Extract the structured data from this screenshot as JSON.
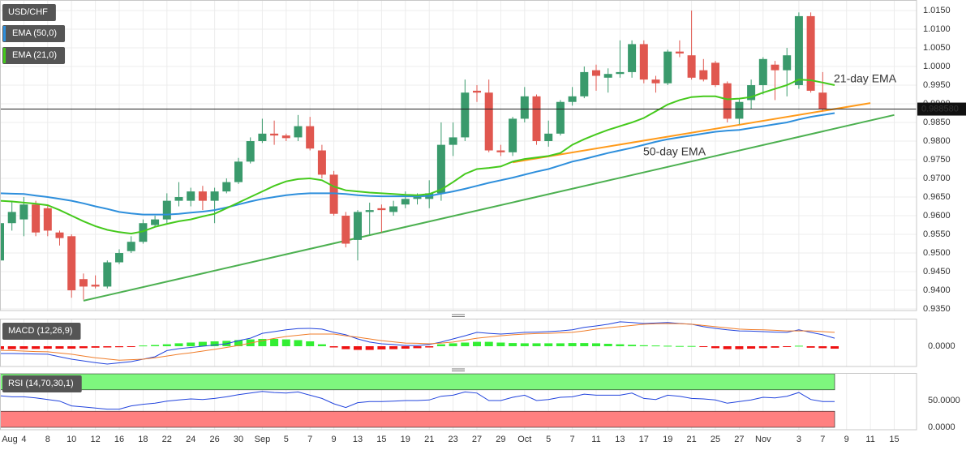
{
  "chart_data": [
    {
      "type": "candlestick",
      "title": "USD/CHF",
      "up_color": "#3a9a6c",
      "down_color": "#e0574f",
      "open": [
        0.948,
        0.958,
        0.959,
        0.963,
        0.962,
        0.9555,
        0.9545,
        0.943,
        0.9415,
        0.941,
        0.9475,
        0.9505,
        0.953,
        0.9575,
        0.959,
        0.964,
        0.964,
        0.9665,
        0.964,
        0.9665,
        0.969,
        0.9745,
        0.98,
        0.982,
        0.9815,
        0.981,
        0.984,
        0.9775,
        0.971,
        0.96,
        0.9535,
        0.961,
        0.962,
        0.961,
        0.963,
        0.9645,
        0.9645,
        0.966,
        0.979,
        0.981,
        0.9935,
        0.993,
        0.9775,
        0.977,
        0.986,
        0.992,
        0.98,
        0.982,
        0.9905,
        0.992,
        0.999,
        0.997,
        0.998,
        0.9985,
        1.006,
        0.9965,
        0.9955,
        1.004,
        1.003,
        0.999,
        1.001,
        0.9955,
        0.986,
        0.991,
        0.995,
        1.0005,
        0.999,
        0.995,
        1.0135,
        0.993
      ],
      "high": [
        0.959,
        0.964,
        0.965,
        0.964,
        0.963,
        0.956,
        0.955,
        0.9445,
        0.944,
        0.948,
        0.951,
        0.9545,
        0.959,
        0.96,
        0.966,
        0.969,
        0.9675,
        0.968,
        0.9675,
        0.97,
        0.9755,
        0.981,
        0.986,
        0.9855,
        0.982,
        0.987,
        0.9865,
        0.979,
        0.972,
        0.961,
        0.9615,
        0.9635,
        0.963,
        0.964,
        0.9665,
        0.966,
        0.9695,
        0.985,
        0.985,
        0.9965,
        0.995,
        0.9965,
        0.979,
        0.9865,
        0.9945,
        0.9925,
        0.9855,
        0.991,
        0.9945,
        1.0,
        1.0005,
        0.9995,
        1.007,
        1.007,
        1.007,
        0.9975,
        1.0045,
        1.007,
        1.015,
        1.002,
        1.0015,
        0.996,
        0.9915,
        0.9965,
        1.0025,
        1.0015,
        1.005,
        1.0145,
        1.0145,
        0.9985
      ],
      "low": [
        0.947,
        0.956,
        0.9545,
        0.9545,
        0.9545,
        0.952,
        0.938,
        0.9375,
        0.9405,
        0.9405,
        0.947,
        0.95,
        0.9525,
        0.957,
        0.958,
        0.9625,
        0.9625,
        0.9615,
        0.958,
        0.966,
        0.9685,
        0.974,
        0.9795,
        0.979,
        0.98,
        0.98,
        0.9775,
        0.97,
        0.96,
        0.9515,
        0.948,
        0.955,
        0.9555,
        0.96,
        0.962,
        0.963,
        0.962,
        0.964,
        0.976,
        0.98,
        0.9905,
        0.977,
        0.976,
        0.976,
        0.985,
        0.979,
        0.9785,
        0.9815,
        0.9895,
        0.9915,
        0.9935,
        0.993,
        0.997,
        0.997,
        0.9955,
        0.993,
        0.995,
        1.0025,
        0.9965,
        0.996,
        0.9945,
        0.985,
        0.9845,
        0.9885,
        0.9925,
        0.991,
        0.992,
        0.994,
        0.993,
        0.988
      ],
      "close": [
        0.958,
        0.961,
        0.963,
        0.9555,
        0.956,
        0.954,
        0.94,
        0.941,
        0.941,
        0.9475,
        0.95,
        0.953,
        0.958,
        0.959,
        0.964,
        0.965,
        0.9665,
        0.964,
        0.9665,
        0.969,
        0.9745,
        0.98,
        0.982,
        0.9815,
        0.9808,
        0.984,
        0.978,
        0.971,
        0.9605,
        0.9525,
        0.961,
        0.9615,
        0.9615,
        0.9625,
        0.9645,
        0.965,
        0.966,
        0.979,
        0.981,
        0.993,
        0.993,
        0.9775,
        0.977,
        0.986,
        0.992,
        0.98,
        0.982,
        0.9905,
        0.992,
        0.9985,
        0.9975,
        0.998,
        0.9985,
        1.006,
        0.9965,
        0.9955,
        1.004,
        1.0035,
        0.997,
        0.9965,
        0.995,
        0.986,
        0.9905,
        0.995,
        1.002,
        0.999,
        1.003,
        1.0135,
        0.9935,
        0.9885
      ],
      "series": [
        {
          "name": "EMA (50,0)",
          "color": "#2e8fdc",
          "values": [
            0.966,
            0.9659,
            0.9658,
            0.9654,
            0.965,
            0.9645,
            0.964,
            0.9633,
            0.9625,
            0.9618,
            0.961,
            0.9606,
            0.9603,
            0.9603,
            0.9603,
            0.9605,
            0.9608,
            0.9611,
            0.9615,
            0.9622,
            0.963,
            0.9638,
            0.9645,
            0.965,
            0.9655,
            0.9658,
            0.966,
            0.966,
            0.966,
            0.9658,
            0.9655,
            0.9653,
            0.9652,
            0.9652,
            0.9652,
            0.9652,
            0.9653,
            0.9659,
            0.9665,
            0.9672,
            0.968,
            0.9688,
            0.9695,
            0.9702,
            0.971,
            0.9718,
            0.9725,
            0.9735,
            0.9745,
            0.9752,
            0.976,
            0.9768,
            0.9775,
            0.9782,
            0.979,
            0.9798,
            0.9805,
            0.981,
            0.9815,
            0.982,
            0.9825,
            0.9828,
            0.983,
            0.9835,
            0.984,
            0.9845,
            0.985,
            0.9858,
            0.9865,
            0.987,
            0.9875
          ]
        },
        {
          "name": "EMA (21,0)",
          "color": "#45c91c",
          "values": [
            0.964,
            0.9638,
            0.9635,
            0.9632,
            0.9628,
            0.9615,
            0.96,
            0.9585,
            0.9572,
            0.9562,
            0.9556,
            0.9552,
            0.9558,
            0.957,
            0.9578,
            0.9585,
            0.959,
            0.9598,
            0.9605,
            0.962,
            0.9635,
            0.965,
            0.9665,
            0.968,
            0.9692,
            0.9698,
            0.97,
            0.9695,
            0.9678,
            0.9668,
            0.9665,
            0.9662,
            0.966,
            0.9658,
            0.9656,
            0.9655,
            0.9658,
            0.967,
            0.969,
            0.9712,
            0.9725,
            0.9728,
            0.9732,
            0.9745,
            0.9752,
            0.9756,
            0.976,
            0.9768,
            0.979,
            0.9805,
            0.9818,
            0.983,
            0.984,
            0.985,
            0.9862,
            0.988,
            0.9898,
            0.991,
            0.9918,
            0.992,
            0.992,
            0.9912,
            0.9914,
            0.9918,
            0.993,
            0.994,
            0.995,
            0.9965,
            0.9963,
            0.9957,
            0.995
          ]
        }
      ],
      "trendlines": [
        {
          "color": "#4cb050",
          "x": [
            7,
            75
          ],
          "y": [
            0.9372,
            0.987
          ]
        },
        {
          "color": "#ff9a1a",
          "x": [
            43,
            73
          ],
          "y": [
            0.9743,
            0.9902
          ]
        }
      ],
      "annotations": [
        {
          "text": "21-day EMA",
          "color": "#45c91c"
        },
        {
          "text": "50-day EMA",
          "color": "#2e8fdc"
        }
      ],
      "last_price": {
        "value": 0.98858,
        "label": "0.988580"
      },
      "xlim": [
        0,
        76.87
      ],
      "xticks": [
        {
          "value": 0,
          "label": "Aug"
        },
        {
          "value": 2,
          "label": "4"
        },
        {
          "value": 4,
          "label": "8"
        },
        {
          "value": 6,
          "label": "10"
        },
        {
          "value": 8,
          "label": "12"
        },
        {
          "value": 10,
          "label": "16"
        },
        {
          "value": 12,
          "label": "18"
        },
        {
          "value": 14,
          "label": "22"
        },
        {
          "value": 16,
          "label": "24"
        },
        {
          "value": 18,
          "label": "26"
        },
        {
          "value": 20,
          "label": "30"
        },
        {
          "value": 22,
          "label": "Sep"
        },
        {
          "value": 24,
          "label": "5"
        },
        {
          "value": 26,
          "label": "7"
        },
        {
          "value": 28,
          "label": "9"
        },
        {
          "value": 30,
          "label": "13"
        },
        {
          "value": 32,
          "label": "15"
        },
        {
          "value": 34,
          "label": "19"
        },
        {
          "value": 36,
          "label": "21"
        },
        {
          "value": 38,
          "label": "23"
        },
        {
          "value": 40,
          "label": "27"
        },
        {
          "value": 42,
          "label": "29"
        },
        {
          "value": 44,
          "label": "Oct"
        },
        {
          "value": 46,
          "label": "5"
        },
        {
          "value": 48,
          "label": "7"
        },
        {
          "value": 50,
          "label": "11"
        },
        {
          "value": 52,
          "label": "13"
        },
        {
          "value": 54,
          "label": "17"
        },
        {
          "value": 56,
          "label": "19"
        },
        {
          "value": 58,
          "label": "21"
        },
        {
          "value": 60,
          "label": "25"
        },
        {
          "value": 62,
          "label": "27"
        },
        {
          "value": 64,
          "label": "Nov"
        },
        {
          "value": 67,
          "label": "3"
        },
        {
          "value": 69,
          "label": "7"
        },
        {
          "value": 71,
          "label": "9"
        },
        {
          "value": 73,
          "label": "11"
        },
        {
          "value": 75,
          "label": "15"
        }
      ],
      "ylim": [
        0.93457,
        1.01783
      ],
      "yticks": [
        {
          "value": 0.935,
          "label": "0.9350"
        },
        {
          "value": 0.94,
          "label": "0.9400"
        },
        {
          "value": 0.945,
          "label": "0.9450"
        },
        {
          "value": 0.95,
          "label": "0.9500"
        },
        {
          "value": 0.955,
          "label": "0.9550"
        },
        {
          "value": 0.96,
          "label": "0.9600"
        },
        {
          "value": 0.965,
          "label": "0.9650"
        },
        {
          "value": 0.97,
          "label": "0.9700"
        },
        {
          "value": 0.975,
          "label": "0.9750"
        },
        {
          "value": 0.98,
          "label": "0.9800"
        },
        {
          "value": 0.985,
          "label": "0.9850"
        },
        {
          "value": 0.99,
          "label": "0.9900"
        },
        {
          "value": 0.995,
          "label": "0.9950"
        },
        {
          "value": 1.0,
          "label": "1.0000"
        },
        {
          "value": 1.005,
          "label": "1.0050"
        },
        {
          "value": 1.01,
          "label": "1.0100"
        },
        {
          "value": 1.015,
          "label": "1.0150"
        }
      ],
      "grid": true
    },
    {
      "type": "macd",
      "title": "MACD (12,26,9)",
      "histogram": [
        -0.0012,
        -0.0012,
        -0.0011,
        -0.0011,
        -0.001,
        -0.001,
        -0.001,
        -0.0008,
        -0.0006,
        -0.0005,
        -0.0004,
        -0.0002,
        0.0003,
        0.0005,
        0.0008,
        0.0012,
        0.0015,
        0.0018,
        0.002,
        0.0022,
        0.0025,
        0.0028,
        0.003,
        0.003,
        0.0028,
        0.0025,
        0.002,
        0.0008,
        -0.0005,
        -0.0012,
        -0.0015,
        -0.0015,
        -0.0013,
        -0.0012,
        -0.001,
        -0.0008,
        -0.0005,
        0.0008,
        0.0012,
        0.0015,
        0.0018,
        0.0018,
        0.0015,
        0.0013,
        0.0012,
        0.0012,
        0.0012,
        0.0012,
        0.0013,
        0.0013,
        0.0012,
        0.001,
        0.0008,
        0.0006,
        0.0004,
        0.0003,
        0.0002,
        0.0001,
        0.0001,
        -0.0002,
        -0.0008,
        -0.0012,
        -0.0012,
        -0.001,
        -0.0008,
        -0.0006,
        -0.0003,
        0.0002,
        -0.0006,
        -0.0008,
        -0.001
      ],
      "up_color": "#33ee33",
      "down_color": "#ee1111",
      "series": [
        {
          "color": "#2244dd",
          "values": [
            -0.003,
            -0.003,
            -0.0031,
            -0.0032,
            -0.0033,
            -0.0043,
            -0.0053,
            -0.006,
            -0.0067,
            -0.0073,
            -0.0068,
            -0.0063,
            -0.0053,
            -0.0043,
            -0.0018,
            -0.001,
            -0.0005,
            0,
            0.0005,
            0.001,
            0.0023,
            0.0033,
            0.0053,
            0.006,
            0.0067,
            0.0072,
            0.0073,
            0.007,
            0.0057,
            0.0047,
            0.003,
            0.0017,
            0.001,
            0.0007,
            0.0003,
            0.0003,
            0.0007,
            0.0017,
            0.003,
            0.0043,
            0.0057,
            0.0053,
            0.005,
            0.0053,
            0.0057,
            0.0058,
            0.006,
            0.0063,
            0.0067,
            0.0077,
            0.0083,
            0.009,
            0.01,
            0.0097,
            0.0093,
            0.0095,
            0.0097,
            0.0093,
            0.009,
            0.008,
            0.0073,
            0.0067,
            0.0063,
            0.0062,
            0.006,
            0.0058,
            0.0057,
            0.0067,
            0.0057,
            0.0047,
            0.0033
          ]
        },
        {
          "color": "#f07d2a",
          "values": [
            -0.0017,
            -0.0018,
            -0.002,
            -0.0022,
            -0.0023,
            -0.0028,
            -0.0033,
            -0.004,
            -0.0047,
            -0.0052,
            -0.0057,
            -0.0055,
            -0.0053,
            -0.0047,
            -0.004,
            -0.0033,
            -0.0027,
            -0.002,
            -0.0013,
            -0.0005,
            0.0003,
            0.0013,
            0.0023,
            0.0032,
            0.004,
            0.0045,
            0.005,
            0.005,
            0.005,
            0.0043,
            0.0037,
            0.003,
            0.0023,
            0.0018,
            0.0013,
            0.0012,
            0.001,
            0.0013,
            0.0017,
            0.0025,
            0.0033,
            0.0038,
            0.0043,
            0.0047,
            0.005,
            0.0052,
            0.0053,
            0.0055,
            0.0057,
            0.0063,
            0.007,
            0.0075,
            0.008,
            0.0085,
            0.009,
            0.0092,
            0.0093,
            0.0092,
            0.009,
            0.0085,
            0.008,
            0.0075,
            0.007,
            0.0068,
            0.0067,
            0.0065,
            0.0063,
            0.0063,
            0.0063,
            0.006,
            0.0057
          ]
        }
      ],
      "ylim": [
        -0.0083,
        0.0113
      ],
      "yticks": [
        {
          "value": 0,
          "label": "0.0000"
        }
      ]
    },
    {
      "type": "rsi",
      "title": "RSI (14,70,30,1)",
      "color": "#2244dd",
      "values": [
        59,
        57,
        57,
        55,
        52,
        49,
        40,
        38,
        36,
        34,
        34,
        40,
        43,
        45,
        49,
        51,
        53,
        52,
        54,
        57,
        61,
        64,
        67,
        65,
        64,
        66,
        60,
        54,
        44,
        37,
        46,
        48,
        48,
        49,
        50,
        50,
        51,
        58,
        60,
        66,
        64,
        50,
        50,
        56,
        60,
        50,
        52,
        56,
        57,
        62,
        60,
        60,
        60,
        64,
        54,
        52,
        60,
        58,
        54,
        53,
        51,
        45,
        48,
        51,
        56,
        55,
        58,
        65,
        52,
        48,
        48
      ],
      "overbought": 70,
      "oversold": 30,
      "overbought_color": "#7ef77e",
      "oversold_color": "#ff8080",
      "ylim": [
        0,
        100
      ],
      "yticks": [
        {
          "value": 50,
          "label": "50.0000"
        },
        {
          "value": 0,
          "label": "0.0000"
        }
      ]
    }
  ]
}
